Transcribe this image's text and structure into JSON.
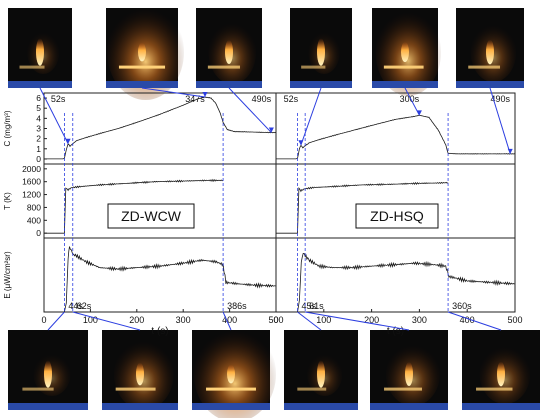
{
  "chart_data": {
    "type": "line",
    "x_axis": {
      "label": "t (s)",
      "ticks": [
        0,
        100,
        200,
        300,
        400,
        500
      ],
      "xlim": [
        0,
        500
      ]
    },
    "panels": [
      {
        "name": "ZD-WCW",
        "label_box": "ZD-WCW",
        "rows": [
          {
            "ylabel": "C (mg/m³)",
            "ylim": [
              -0.5,
              6.5
            ],
            "ticks": [
              0,
              1,
              2,
              3,
              4,
              5,
              6
            ],
            "x": [
              0,
              40,
              44,
              48,
              52,
              56,
              62,
              70,
              90,
              120,
              160,
              200,
              250,
              300,
              330,
              347,
              360,
              370,
              380,
              386,
              395,
              410,
              450,
              490,
              500
            ],
            "y": [
              0,
              0,
              0.05,
              0.9,
              1.5,
              1.25,
              1.5,
              1.8,
              2.1,
              2.5,
              3.0,
              3.6,
              4.4,
              5.3,
              5.9,
              6.1,
              6.0,
              5.5,
              4.5,
              3.6,
              2.9,
              2.7,
              2.65,
              2.6,
              2.6
            ]
          },
          {
            "ylabel": "T (K)",
            "ylim": [
              -150,
              2150
            ],
            "ticks": [
              0,
              400,
              800,
              1200,
              1600,
              2000
            ],
            "x": [
              0,
              40,
              44,
              47,
              52,
              60,
              80,
              120,
              180,
              240,
              300,
              350,
              386
            ],
            "y": [
              0,
              0,
              0,
              1400,
              1350,
              1420,
              1450,
              1500,
              1550,
              1600,
              1620,
              1640,
              1640
            ]
          },
          {
            "ylabel": "E (μW/cm²sr)",
            "ylim": [
              0,
              2.5
            ],
            "x": [
              0,
              40,
              44,
              48,
              52,
              55,
              60,
              62,
              70,
              90,
              120,
              160,
              200,
              250,
              300,
              340,
              370,
              386,
              392,
              420,
              460,
              500
            ],
            "y": [
              0,
              0,
              0,
              0.3,
              1.8,
              2.2,
              2.05,
              1.95,
              1.9,
              1.7,
              1.5,
              1.45,
              1.5,
              1.55,
              1.65,
              1.75,
              1.7,
              1.6,
              1.0,
              0.95,
              0.9,
              0.88
            ]
          }
        ],
        "markers": [
          {
            "t": 52,
            "label": "52s",
            "row": 0,
            "line": false
          },
          {
            "t": 347,
            "label": "347s",
            "row": 0,
            "line": false
          },
          {
            "t": 490,
            "label": "490s",
            "row": 0,
            "line": false
          },
          {
            "t": 44,
            "label": "44s",
            "row": 2,
            "line": true
          },
          {
            "t": 62,
            "label": "62s",
            "row": 2,
            "line": true
          },
          {
            "t": 386,
            "label": "386s",
            "row": 2,
            "line": true
          }
        ]
      },
      {
        "name": "ZD-HSQ",
        "label_box": "ZD-HSQ",
        "rows": [
          {
            "ylim": [
              -0.5,
              6.5
            ],
            "x": [
              0,
              40,
              45,
              49,
              52,
              56,
              61,
              70,
              90,
              120,
              160,
              200,
              250,
              290,
              300,
              320,
              340,
              355,
              360,
              380,
              420,
              480,
              500
            ],
            "y": [
              0,
              0,
              0.05,
              1.0,
              1.35,
              1.1,
              1.3,
              1.6,
              1.9,
              2.3,
              2.8,
              3.3,
              3.9,
              4.2,
              4.3,
              4.1,
              2.8,
              1.4,
              0.55,
              0.5,
              0.5,
              0.5,
              0.5
            ]
          },
          {
            "ylim": [
              -150,
              2150
            ],
            "x": [
              0,
              40,
              45,
              48,
              52,
              60,
              80,
              120,
              180,
              240,
              300,
              340,
              360
            ],
            "y": [
              0,
              0,
              0,
              1400,
              1320,
              1380,
              1420,
              1450,
              1500,
              1520,
              1550,
              1560,
              1570
            ]
          },
          {
            "ylim": [
              0,
              2.5
            ],
            "x": [
              0,
              40,
              45,
              49,
              53,
              57,
              61,
              70,
              90,
              120,
              160,
              200,
              250,
              290,
              330,
              355,
              362,
              400,
              450,
              500
            ],
            "y": [
              0,
              0,
              0,
              0.4,
              1.7,
              2.0,
              1.9,
              1.75,
              1.55,
              1.5,
              1.5,
              1.55,
              1.6,
              1.65,
              1.6,
              1.55,
              1.2,
              1.05,
              1.0,
              0.95
            ]
          }
        ],
        "markers": [
          {
            "t": 52,
            "label": "52s",
            "row": 0,
            "line": false
          },
          {
            "t": 300,
            "label": "300s",
            "row": 0,
            "line": false
          },
          {
            "t": 490,
            "label": "490s",
            "row": 0,
            "line": false
          },
          {
            "t": 45,
            "label": "45s",
            "row": 2,
            "line": true
          },
          {
            "t": 61,
            "label": "61s",
            "row": 2,
            "line": true
          },
          {
            "t": 360,
            "label": "360s",
            "row": 2,
            "line": true
          }
        ]
      }
    ]
  },
  "colors": {
    "curve": "#1a1a1a",
    "marker": "#2c3ee0",
    "frame": "#222222",
    "photo_bg": "#0a0a0a",
    "flame": "#ffb347"
  },
  "photos": [
    {
      "panel": 0,
      "row": "top",
      "t": 52,
      "intensity": 0.35
    },
    {
      "panel": 0,
      "row": "top",
      "t": 347,
      "intensity": 1.0
    },
    {
      "panel": 0,
      "row": "top",
      "t": 490,
      "intensity": 0.6
    },
    {
      "panel": 1,
      "row": "top",
      "t": 52,
      "intensity": 0.35
    },
    {
      "panel": 1,
      "row": "top",
      "t": 300,
      "intensity": 0.9
    },
    {
      "panel": 1,
      "row": "top",
      "t": 490,
      "intensity": 0.55
    },
    {
      "panel": 0,
      "row": "bottom",
      "t": 44,
      "intensity": 0.35
    },
    {
      "panel": 0,
      "row": "bottom",
      "t": 62,
      "intensity": 0.7
    },
    {
      "panel": 0,
      "row": "bottom",
      "t": 386,
      "intensity": 1.0
    },
    {
      "panel": 1,
      "row": "bottom",
      "t": 45,
      "intensity": 0.35
    },
    {
      "panel": 1,
      "row": "bottom",
      "t": 61,
      "intensity": 0.6
    },
    {
      "panel": 1,
      "row": "bottom",
      "t": 360,
      "intensity": 0.55
    }
  ]
}
